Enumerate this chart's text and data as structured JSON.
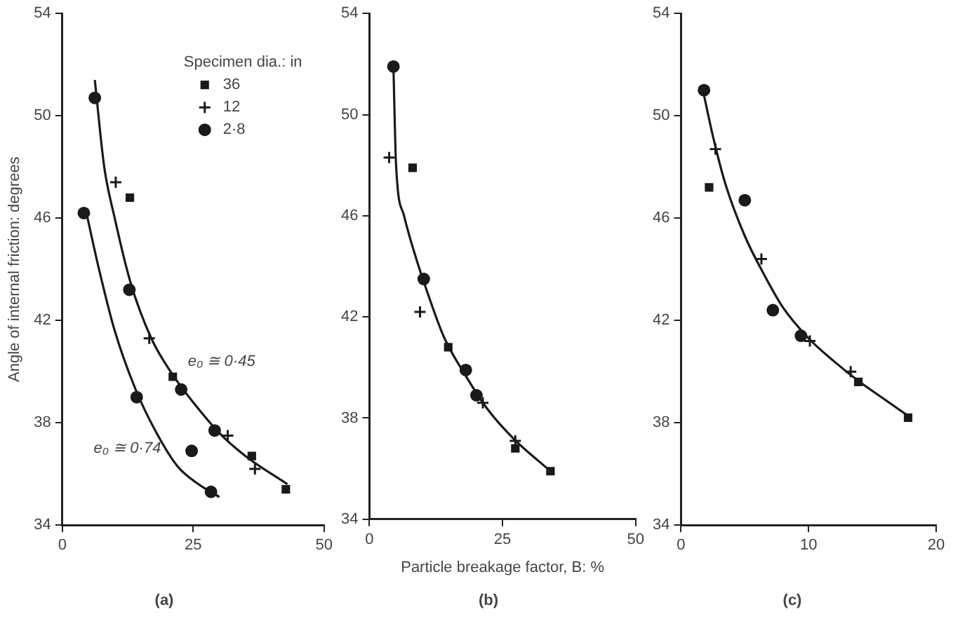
{
  "chart_data": [
    {
      "type": "scatter",
      "title": "(a)",
      "ylabel": "Angle of internal friction: degrees",
      "legend_title": "Specimen dia.: in",
      "legend": "top right",
      "grid": false,
      "xlim": [
        0,
        50
      ],
      "xticks": [
        0,
        25,
        50
      ],
      "ylim": [
        34,
        54
      ],
      "yticks": [
        34,
        38,
        42,
        46,
        50,
        54
      ],
      "annotations": [
        "e₀ ≅ 0·45",
        "e₀ ≅ 0·74"
      ],
      "series": [
        {
          "type": "line",
          "marker": "none",
          "color": "#1a1a1a",
          "x": [
            6.2,
            8,
            10,
            13,
            17,
            21,
            25,
            30,
            35,
            43
          ],
          "values": [
            51.4,
            48,
            46,
            43.5,
            41.3,
            39.9,
            38.8,
            37.6,
            36.7,
            35.6
          ]
        },
        {
          "type": "line",
          "marker": "none",
          "color": "#1a1a1a",
          "x": [
            4.6,
            7,
            10,
            14,
            18,
            22,
            26,
            30
          ],
          "values": [
            46.2,
            44,
            41.6,
            39.3,
            37.6,
            36.3,
            35.6,
            35.1
          ]
        },
        {
          "name": "36",
          "marker": "square",
          "color": "#1a1a1a",
          "x": [
            12.9,
            21.1,
            36.2,
            42.7
          ],
          "values": [
            46.8,
            39.8,
            36.7,
            35.4
          ]
        },
        {
          "name": "12",
          "marker": "cross",
          "color": "#1a1a1a",
          "x": [
            10.2,
            16.6,
            31.6,
            36.8
          ],
          "values": [
            47.4,
            41.3,
            37.5,
            36.2
          ]
        },
        {
          "name": "2·8",
          "marker": "circle",
          "color": "#1a1a1a",
          "x": [
            6.2,
            4.1,
            12.8,
            22.7,
            14.2,
            29.1,
            24.7,
            28.4
          ],
          "values": [
            50.7,
            46.2,
            43.2,
            39.3,
            39.0,
            37.7,
            36.9,
            35.3
          ]
        }
      ]
    },
    {
      "type": "scatter",
      "title": "(b)",
      "xlabel": "Particle breakage factor, B: %",
      "grid": false,
      "xlim": [
        0,
        50
      ],
      "xticks": [
        0,
        25,
        50
      ],
      "ylim": [
        34,
        54
      ],
      "yticks": [
        34,
        38,
        42,
        46,
        50,
        54
      ],
      "series": [
        {
          "type": "line",
          "marker": "none",
          "color": "#1a1a1a",
          "x": [
            4.5,
            5,
            6.5,
            8.5,
            11,
            14,
            18,
            22,
            27,
            34
          ],
          "values": [
            51.9,
            48,
            46,
            44.5,
            42.9,
            41.2,
            39.7,
            38.4,
            37.2,
            35.9
          ]
        },
        {
          "marker": "square",
          "color": "#1a1a1a",
          "x": [
            8.1,
            14.8,
            27.4,
            34.0
          ],
          "values": [
            47.9,
            40.8,
            36.8,
            35.9
          ]
        },
        {
          "marker": "cross",
          "color": "#1a1a1a",
          "x": [
            3.7,
            9.5,
            21.3,
            27.4
          ],
          "values": [
            48.3,
            42.2,
            38.6,
            37.1
          ]
        },
        {
          "marker": "circle",
          "color": "#1a1a1a",
          "x": [
            4.5,
            10.2,
            18.1,
            20.1
          ],
          "values": [
            51.9,
            43.5,
            39.9,
            38.9
          ]
        }
      ]
    },
    {
      "type": "scatter",
      "title": "(c)",
      "grid": false,
      "xlim": [
        0,
        20
      ],
      "xticks": [
        0,
        10,
        20
      ],
      "ylim": [
        34,
        54
      ],
      "yticks": [
        34,
        38,
        42,
        46,
        50,
        54
      ],
      "series": [
        {
          "type": "line",
          "marker": "none",
          "color": "#1a1a1a",
          "x": [
            1.8,
            2.5,
            3.5,
            5,
            6.5,
            8,
            10,
            12,
            14,
            16,
            18
          ],
          "values": [
            50.8,
            49.2,
            47.3,
            45.3,
            43.8,
            42.5,
            41.3,
            40.4,
            39.6,
            38.9,
            38.2
          ]
        },
        {
          "marker": "square",
          "color": "#1a1a1a",
          "x": [
            2.2,
            13.9,
            17.8
          ],
          "values": [
            47.2,
            39.6,
            38.2
          ]
        },
        {
          "marker": "cross",
          "color": "#1a1a1a",
          "x": [
            2.7,
            6.3,
            10.1,
            13.3
          ],
          "values": [
            48.7,
            44.4,
            41.2,
            40.0
          ]
        },
        {
          "marker": "circle",
          "color": "#1a1a1a",
          "x": [
            1.8,
            5.0,
            7.2,
            9.4
          ],
          "values": [
            51.0,
            46.7,
            42.4,
            41.4
          ]
        }
      ]
    }
  ]
}
